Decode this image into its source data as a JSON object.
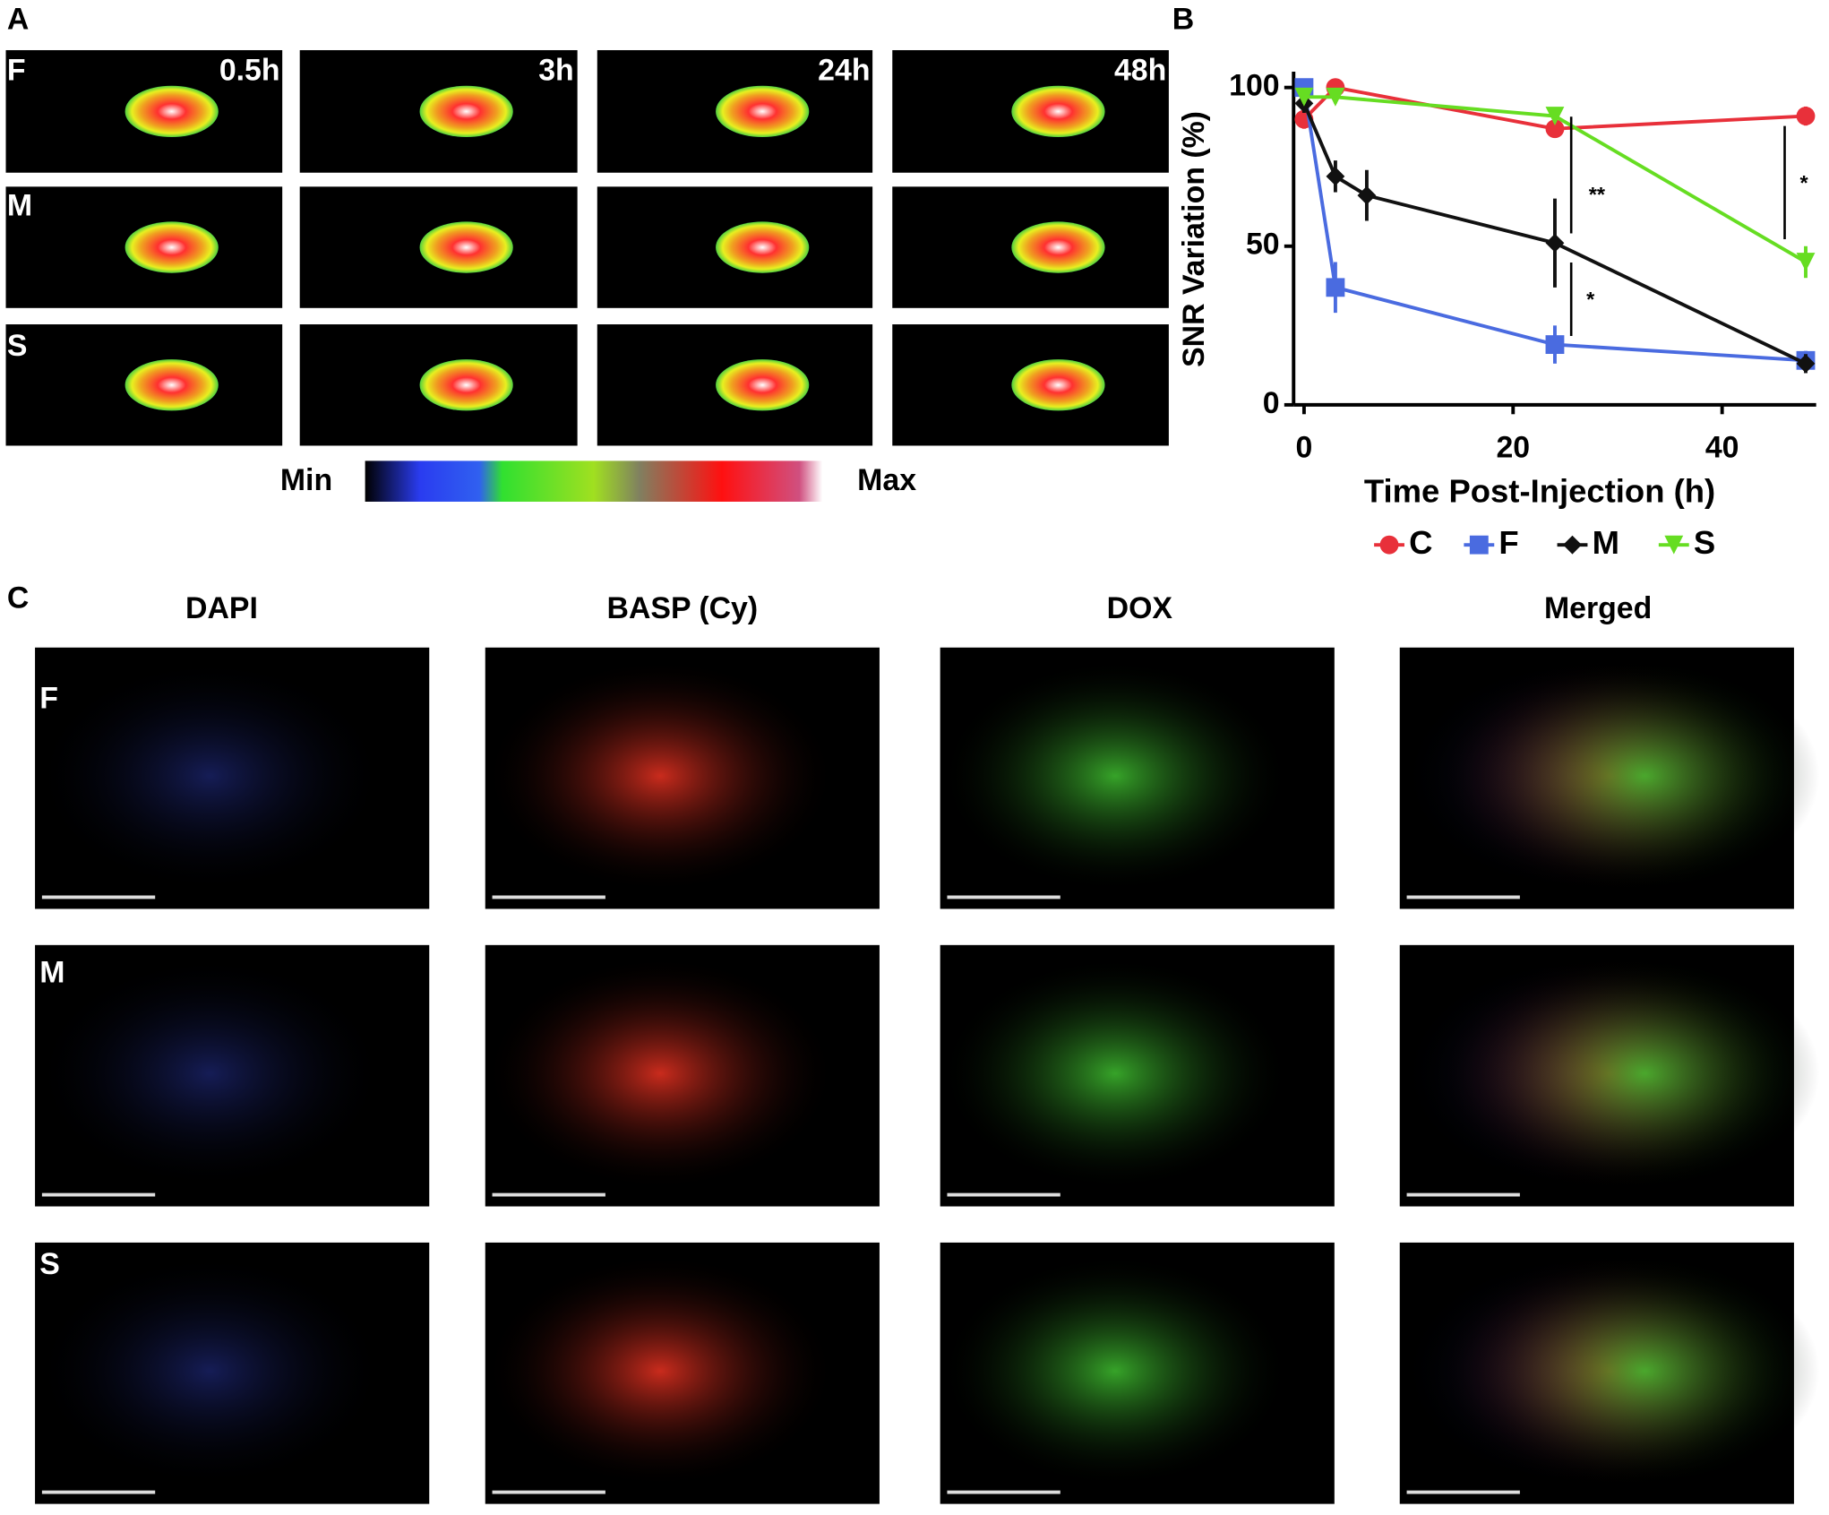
{
  "panel_a": {
    "label": "A",
    "rows": [
      "F",
      "M",
      "S"
    ],
    "times": [
      "0.5h",
      "3h",
      "24h",
      "48h"
    ],
    "colorbar_min": "Min",
    "colorbar_max": "Max"
  },
  "chart_data": {
    "type": "line",
    "label": "B",
    "xlabel": "Time Post-Injection (h)",
    "ylabel": "SNR Variation (%)",
    "xlim": [
      -1,
      49
    ],
    "xticks": [
      0,
      20,
      40
    ],
    "ylim": [
      0,
      105
    ],
    "yticks": [
      0,
      50,
      100
    ],
    "series": [
      {
        "name": "C",
        "color": "#e8303a",
        "marker": "circle",
        "x": [
          0,
          3,
          24,
          48
        ],
        "values": [
          90,
          100,
          87,
          91
        ],
        "errors": [
          3,
          1,
          2,
          3
        ]
      },
      {
        "name": "F",
        "color": "#4a6be0",
        "marker": "square",
        "x": [
          0,
          3,
          24,
          48
        ],
        "values": [
          100,
          37,
          19,
          14
        ],
        "errors": [
          1,
          8,
          6,
          3
        ]
      },
      {
        "name": "M",
        "color": "#111111",
        "marker": "diamond",
        "x": [
          0,
          3,
          6,
          24,
          48
        ],
        "values": [
          95,
          72,
          66,
          51,
          13
        ],
        "errors": [
          3,
          5,
          8,
          14,
          3
        ]
      },
      {
        "name": "S",
        "color": "#66dd22",
        "marker": "triangle",
        "x": [
          0,
          3,
          24,
          48
        ],
        "values": [
          97,
          97,
          91,
          45
        ],
        "errors": [
          2,
          2,
          2,
          5
        ]
      }
    ],
    "annotations": [
      "**",
      "*",
      "*"
    ]
  },
  "panel_c": {
    "label": "C",
    "columns": [
      "DAPI",
      "BASP (Cy)",
      "DOX",
      "Merged"
    ],
    "rows": [
      "F",
      "M",
      "S"
    ]
  }
}
